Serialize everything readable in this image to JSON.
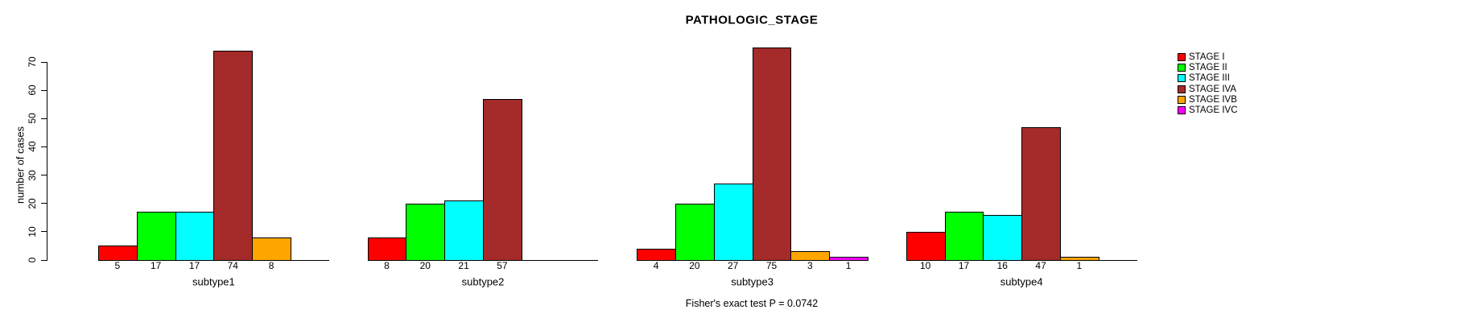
{
  "title": "PATHOLOGIC_STAGE",
  "chart_data": {
    "type": "bar",
    "title": "PATHOLOGIC_STAGE",
    "xlabel": "",
    "ylabel": "number of cases",
    "annotation": "Fisher's exact test P = 0.0742",
    "categories": [
      "subtype1",
      "subtype2",
      "subtype3",
      "subtype4"
    ],
    "series": [
      {
        "name": "STAGE I",
        "color": "#FF0000",
        "values": [
          5,
          8,
          4,
          10
        ]
      },
      {
        "name": "STAGE II",
        "color": "#00FF00",
        "values": [
          17,
          20,
          20,
          17
        ]
      },
      {
        "name": "STAGE III",
        "color": "#00FFFF",
        "values": [
          17,
          21,
          27,
          16
        ]
      },
      {
        "name": "STAGE IVA",
        "color": "#A52A2A",
        "values": [
          74,
          57,
          75,
          47
        ]
      },
      {
        "name": "STAGE IVB",
        "color": "#FFA500",
        "values": [
          8,
          0,
          3,
          1
        ]
      },
      {
        "name": "STAGE IVC",
        "color": "#FF00FF",
        "values": [
          0,
          0,
          1,
          0
        ]
      }
    ],
    "yticks": [
      0,
      10,
      20,
      30,
      40,
      50,
      60,
      70
    ],
    "ylim": [
      0,
      75
    ],
    "grid": false,
    "legend_position": "right",
    "bar_value_labels": "nonzero counts shown below axis under each bar",
    "axis_color": "#000000",
    "background_color": "#FFFFFF"
  }
}
